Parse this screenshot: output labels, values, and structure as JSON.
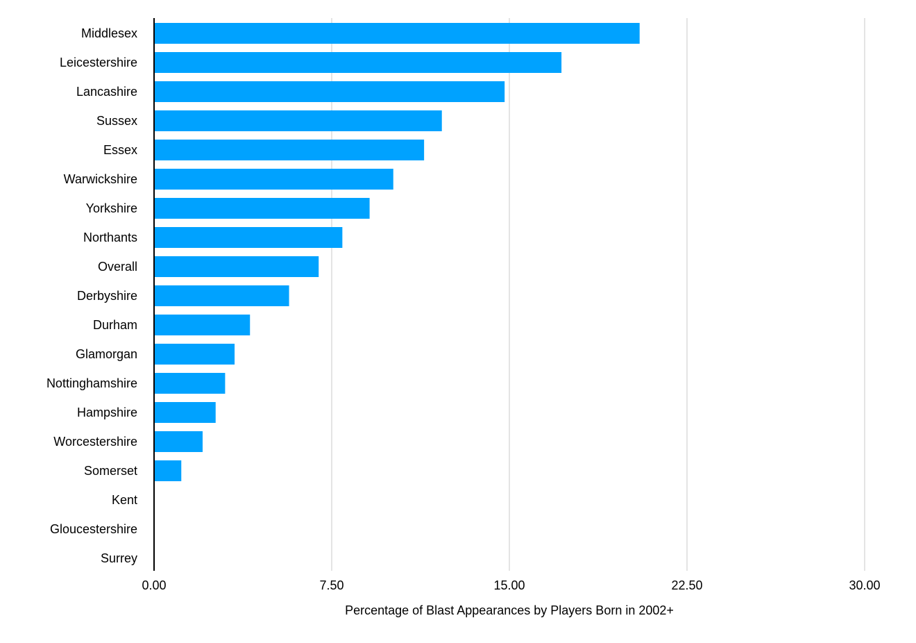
{
  "chart_data": {
    "type": "bar",
    "orientation": "horizontal",
    "categories": [
      "Middlesex",
      "Leicestershire",
      "Lancashire",
      "Sussex",
      "Essex",
      "Warwickshire",
      "Yorkshire",
      "Northants",
      "Overall",
      "Derbyshire",
      "Durham",
      "Glamorgan",
      "Nottinghamshire",
      "Hampshire",
      "Worcestershire",
      "Somerset",
      "Kent",
      "Gloucestershire",
      "Surrey"
    ],
    "values": [
      20.5,
      17.2,
      14.8,
      12.15,
      11.4,
      10.1,
      9.1,
      7.95,
      6.95,
      5.7,
      4.05,
      3.4,
      3.0,
      2.6,
      2.05,
      1.15,
      0,
      0,
      0
    ],
    "xlabel": "Percentage of Blast Appearances by Players Born in 2002+",
    "ylabel": "",
    "xlim": [
      0,
      30
    ],
    "xticks": [
      "0.00",
      "7.50",
      "15.00",
      "22.50",
      "30.00"
    ],
    "xtick_values": [
      0,
      7.5,
      15,
      22.5,
      30
    ],
    "grid": "vertical",
    "bar_color": "#00A2FF",
    "grid_color": "#C8C8C8",
    "axis_color": "#000000"
  }
}
